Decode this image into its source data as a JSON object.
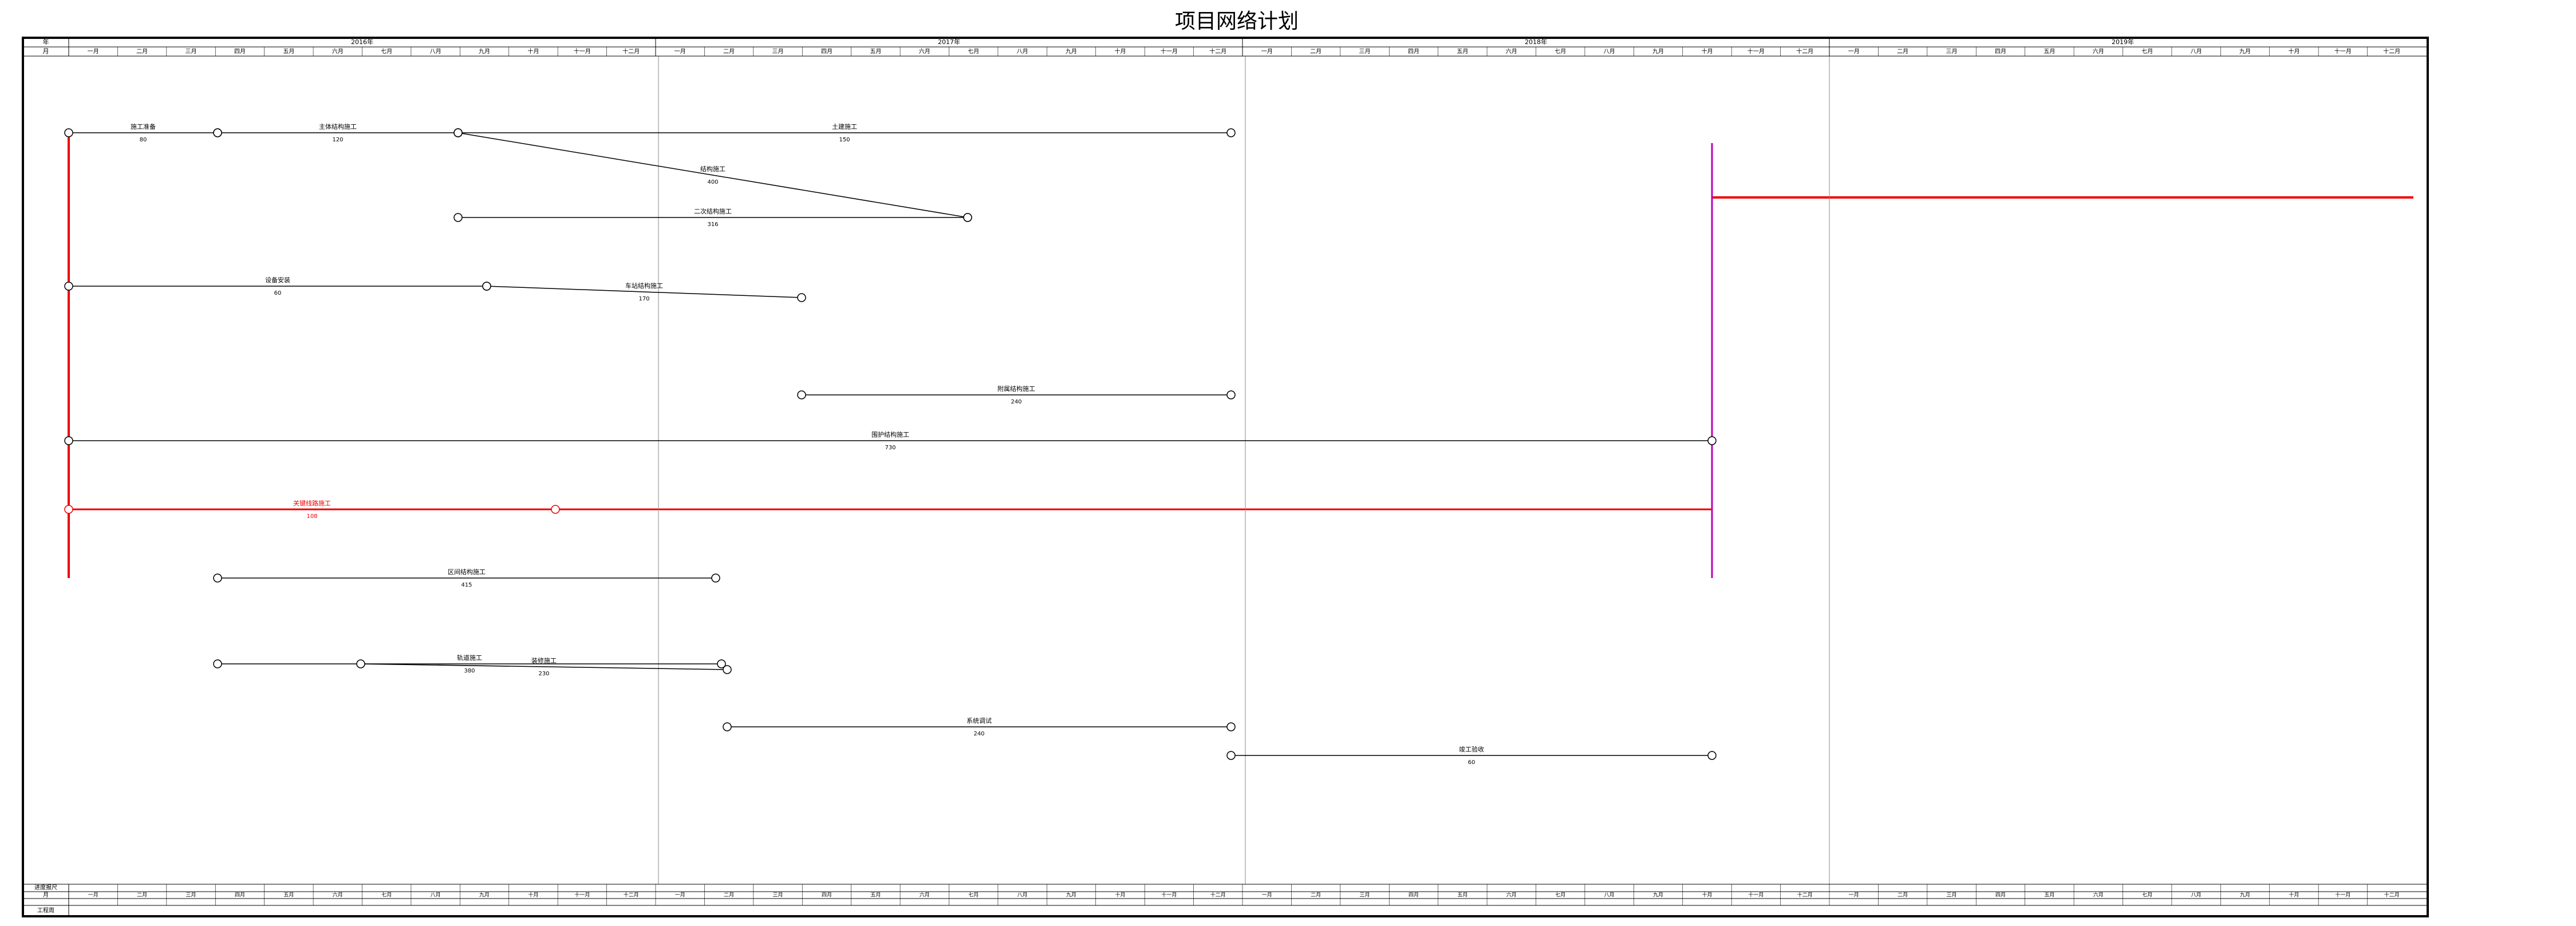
{
  "header": {
    "title": "项目网络计划"
  },
  "timeline": {
    "row_labels_top": [
      "年",
      "月"
    ],
    "years": [
      "2016年",
      "2017年",
      "2018年",
      "2019年"
    ],
    "months": [
      "一月",
      "二月",
      "三月",
      "四月",
      "五月",
      "六月",
      "七月",
      "八月",
      "九月",
      "十月",
      "十一月",
      "十二月"
    ],
    "row_labels_bottom": [
      "进度报尺",
      "月",
      "工程周"
    ]
  },
  "nodes": [
    {
      "label": "施工准备",
      "duration": "80"
    },
    {
      "label": "主体结构施工",
      "duration": "120"
    },
    {
      "label": "土建施工",
      "duration": "150"
    },
    {
      "label": "结构施工",
      "duration": "400"
    },
    {
      "label": "二次结构施工",
      "duration": "316"
    },
    {
      "label": "设备安装",
      "duration": "60"
    },
    {
      "label": "车站结构施工",
      "duration": "170"
    },
    {
      "label": "附属结构施工",
      "duration": "240"
    },
    {
      "label": "围护结构施工",
      "duration": "730"
    },
    {
      "label": "关键线路施工",
      "duration": "108"
    },
    {
      "label": "区间结构施工",
      "duration": "415"
    },
    {
      "label": "轨道施工",
      "duration": "380"
    },
    {
      "label": "装修施工",
      "duration": "230"
    },
    {
      "label": "系统调试",
      "duration": "240"
    },
    {
      "label": "竣工验收",
      "duration": "60"
    }
  ]
}
